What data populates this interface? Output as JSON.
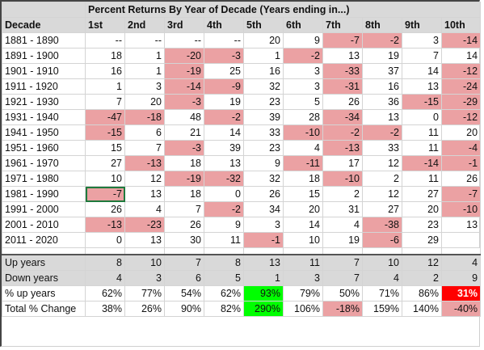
{
  "title": "Percent Returns By Year of Decade (Years ending in...)",
  "header": [
    "Decade",
    "1st",
    "2nd",
    "3rd",
    "4th",
    "5th",
    "6th",
    "7th",
    "8th",
    "9th",
    "10th"
  ],
  "rows": [
    {
      "label": "1881 - 1890",
      "values": [
        "--",
        "--",
        "--",
        "--",
        "20",
        "9",
        "-7",
        "-2",
        "3",
        "-14"
      ]
    },
    {
      "label": "1891 - 1900",
      "values": [
        "18",
        "1",
        "-20",
        "-3",
        "1",
        "-2",
        "13",
        "19",
        "7",
        "14"
      ]
    },
    {
      "label": "1901 - 1910",
      "values": [
        "16",
        "1",
        "-19",
        "25",
        "16",
        "3",
        "-33",
        "37",
        "14",
        "-12"
      ]
    },
    {
      "label": "1911 - 1920",
      "values": [
        "1",
        "3",
        "-14",
        "-9",
        "32",
        "3",
        "-31",
        "16",
        "13",
        "-24"
      ]
    },
    {
      "label": "1921 - 1930",
      "values": [
        "7",
        "20",
        "-3",
        "19",
        "23",
        "5",
        "26",
        "36",
        "-15",
        "-29"
      ]
    },
    {
      "label": "1931 - 1940",
      "values": [
        "-47",
        "-18",
        "48",
        "-2",
        "39",
        "28",
        "-34",
        "13",
        "0",
        "-12"
      ]
    },
    {
      "label": "1941 - 1950",
      "values": [
        "-15",
        "6",
        "21",
        "14",
        "33",
        "-10",
        "-2",
        "-2",
        "11",
        "20"
      ]
    },
    {
      "label": "1951 - 1960",
      "values": [
        "15",
        "7",
        "-3",
        "39",
        "23",
        "4",
        "-13",
        "33",
        "11",
        "-4"
      ]
    },
    {
      "label": "1961 - 1970",
      "values": [
        "27",
        "-13",
        "18",
        "13",
        "9",
        "-11",
        "17",
        "12",
        "-14",
        "-1"
      ]
    },
    {
      "label": "1971 - 1980",
      "values": [
        "10",
        "12",
        "-19",
        "-32",
        "32",
        "18",
        "-10",
        "2",
        "11",
        "26"
      ]
    },
    {
      "label": "1981 - 1990",
      "values": [
        "-7",
        "13",
        "18",
        "0",
        "26",
        "15",
        "2",
        "12",
        "27",
        "-7"
      ]
    },
    {
      "label": "1991 - 2000",
      "values": [
        "26",
        "4",
        "7",
        "-2",
        "34",
        "20",
        "31",
        "27",
        "20",
        "-10"
      ]
    },
    {
      "label": "2001 - 2010",
      "values": [
        "-13",
        "-23",
        "26",
        "9",
        "3",
        "14",
        "4",
        "-38",
        "23",
        "13"
      ]
    },
    {
      "label": "2011 - 2020",
      "values": [
        "0",
        "13",
        "30",
        "11",
        "-1",
        "10",
        "19",
        "-6",
        "29",
        ""
      ]
    }
  ],
  "summary": [
    {
      "label": "Up years",
      "values": [
        "8",
        "10",
        "7",
        "8",
        "13",
        "11",
        "7",
        "10",
        "12",
        "4"
      ]
    },
    {
      "label": "Down years",
      "values": [
        "4",
        "3",
        "6",
        "5",
        "1",
        "3",
        "7",
        "4",
        "2",
        "9"
      ]
    }
  ],
  "stats": [
    {
      "label": "% up years",
      "values": [
        "62%",
        "77%",
        "54%",
        "62%",
        "93%",
        "79%",
        "50%",
        "71%",
        "86%",
        "31%"
      ]
    },
    {
      "label": "Total % Change",
      "values": [
        "38%",
        "26%",
        "90%",
        "82%",
        "290%",
        "106%",
        "-18%",
        "159%",
        "140%",
        "-40%"
      ]
    }
  ],
  "colors": {
    "header_gray": "#d9d9d9",
    "negative_pink": "#eba1a3",
    "best_green": "#00ff00",
    "worst_red": "#ff0000",
    "selection": "#1f7a3d"
  },
  "selected_cell": {
    "row": 10,
    "col": 0
  }
}
